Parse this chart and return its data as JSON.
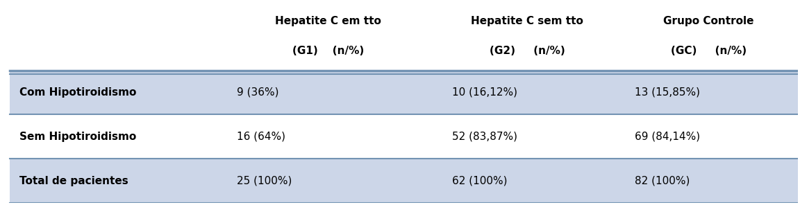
{
  "col_headers": [
    [
      "Hepatite C em tto",
      "(G1)    (n/%)"
    ],
    [
      "Hepatite C sem tto",
      "(G2)     (n/%)"
    ],
    [
      "Grupo Controle",
      "(GC)     (n/%)"
    ]
  ],
  "rows": [
    {
      "label": "Com Hipotiroidismo",
      "values": [
        "9 (36%)",
        "10 (16,12%)",
        "13 (15,85%)"
      ],
      "bg": "#ccd6e8"
    },
    {
      "label": "Sem Hipotiroidismo",
      "values": [
        "16 (64%)",
        "52 (83,87%)",
        "69 (84,14%)"
      ],
      "bg": "#ffffff"
    },
    {
      "label": "Total de pacientes",
      "values": [
        "25 (100%)",
        "62 (100%)",
        "82 (100%)"
      ],
      "bg": "#ccd6e8"
    }
  ],
  "header_bg": "#ffffff",
  "border_color": "#7393b3",
  "text_color": "#000000",
  "header_fontsize": 11,
  "cell_fontsize": 11,
  "label_fontsize": 11
}
